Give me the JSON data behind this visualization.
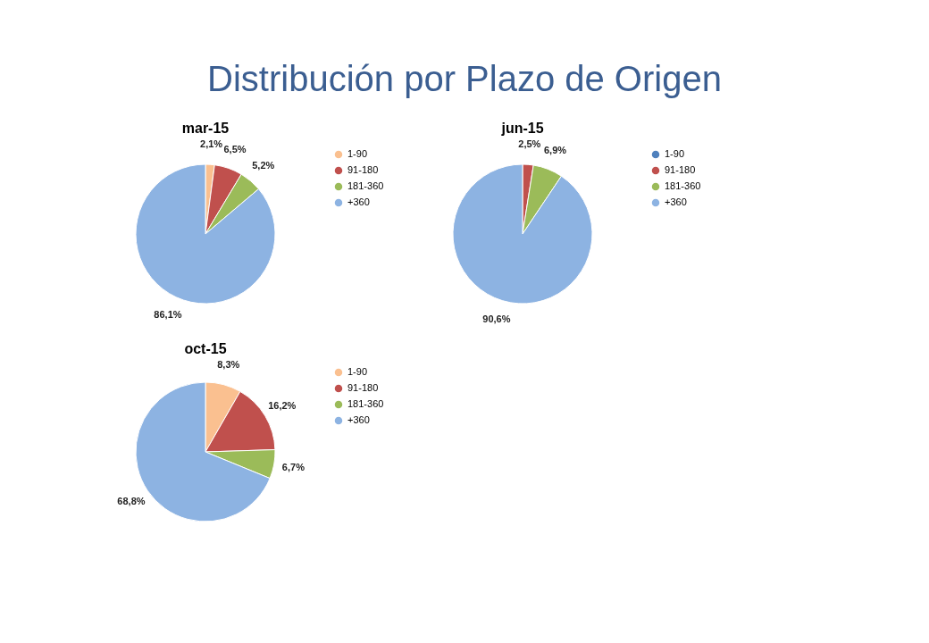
{
  "chart_data": [
    {
      "type": "pie",
      "title": "mar-15",
      "annotations": [
        "Distribución por Plazo de Origen"
      ],
      "categories": [
        "1-90",
        "91-180",
        "181-360",
        "+360"
      ],
      "values": [
        2.1,
        6.5,
        5.2,
        86.1
      ],
      "colors": [
        "#fac090",
        "#c0504d",
        "#9bbb59",
        "#8db3e2"
      ],
      "value_labels": [
        "2,1%",
        "6,5%",
        "5,2%",
        "86,1%"
      ],
      "legend": "right"
    },
    {
      "type": "pie",
      "title": "jun-15",
      "categories": [
        "1-90",
        "91-180",
        "181-360",
        "+360"
      ],
      "values": [
        0,
        2.5,
        6.9,
        90.6
      ],
      "colors": [
        "#4f81bd",
        "#c0504d",
        "#9bbb59",
        "#8db3e2"
      ],
      "value_labels": [
        null,
        "2,5%",
        "6,9%",
        "90,6%"
      ],
      "legend": "right"
    },
    {
      "type": "pie",
      "title": "oct-15",
      "categories": [
        "1-90",
        "91-180",
        "181-360",
        "+360"
      ],
      "values": [
        8.3,
        16.2,
        6.7,
        68.8
      ],
      "colors": [
        "#fac090",
        "#c0504d",
        "#9bbb59",
        "#8db3e2"
      ],
      "value_labels": [
        "8,3%",
        "16,2%",
        "6,7%",
        "68,8%"
      ],
      "legend": "right"
    }
  ]
}
